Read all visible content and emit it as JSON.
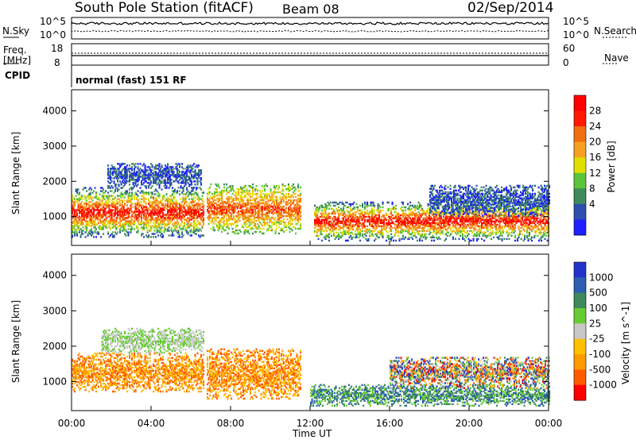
{
  "header": {
    "title": "South Pole Station (fitACF)",
    "beam": "Beam 08",
    "date": "02/Sep/2014"
  },
  "strips": {
    "nsky_label": "N.Sky",
    "nsearch_label": "N.Search",
    "freq_label_1": "Freq.",
    "freq_label_2": "[MHz]",
    "nave_label": "Nave",
    "cpid_label": "CPID",
    "cpid_text": "normal (fast) 151 RF",
    "noise_left_ticks": [
      "10^5",
      "10^0"
    ],
    "noise_right_ticks": [
      "10^5",
      "10^0"
    ],
    "freq_ticks": [
      "18",
      "8"
    ],
    "nave_ticks": [
      "60",
      "0"
    ]
  },
  "colors": {
    "power": [
      "#1f1fff",
      "#2c4fb0",
      "#3e8a5c",
      "#5bc43a",
      "#e0e000",
      "#f7a020",
      "#f07010",
      "#ff1a00",
      "#ff0000"
    ],
    "velocity": [
      "#ff0000",
      "#ff5a00",
      "#ff9a00",
      "#ffc000",
      "#c8c8c8",
      "#66cc33",
      "#3e8a5c",
      "#2c5fb0",
      "#2233cc"
    ]
  },
  "chart_data": [
    {
      "type": "heatmap",
      "title": "",
      "xlabel": "Time UT",
      "ylabel": "Slant Range [km]",
      "xlim": [
        0,
        24
      ],
      "ylim": [
        180,
        4600
      ],
      "x_ticks": [
        "00:00",
        "04:00",
        "08:00",
        "12:00",
        "16:00",
        "20:00",
        "00:00"
      ],
      "y_ticks": [
        1000,
        2000,
        3000,
        4000
      ],
      "colorbar": {
        "label": "Power [dB]",
        "ticks": [
          4,
          8,
          12,
          16,
          20,
          24,
          28
        ]
      },
      "echo_regions": [
        {
          "t_start": 0.0,
          "t_end": 6.6,
          "r_low": 400,
          "r_high": 1800,
          "level": "high"
        },
        {
          "t_start": 1.8,
          "t_end": 6.5,
          "r_low": 1800,
          "r_high": 2500,
          "level": "low"
        },
        {
          "t_start": 6.8,
          "t_end": 11.5,
          "r_low": 500,
          "r_high": 1900,
          "level": "mid"
        },
        {
          "t_start": 12.2,
          "t_end": 24.0,
          "r_low": 300,
          "r_high": 1400,
          "level": "high"
        },
        {
          "t_start": 18.0,
          "t_end": 24.0,
          "r_low": 1000,
          "r_high": 1900,
          "level": "low"
        }
      ]
    },
    {
      "type": "heatmap",
      "title": "",
      "xlabel": "Time UT",
      "ylabel": "Slant Range [km]",
      "xlim": [
        0,
        24
      ],
      "ylim": [
        180,
        4600
      ],
      "x_ticks": [
        "00:00",
        "04:00",
        "08:00",
        "12:00",
        "16:00",
        "20:00",
        "00:00"
      ],
      "y_ticks": [
        1000,
        2000,
        3000,
        4000
      ],
      "colorbar": {
        "label": "Velocity [m s^-1]",
        "ticks": [
          1000,
          500,
          100,
          25,
          -25,
          -100,
          -500,
          -1000
        ]
      },
      "echo_regions": [
        {
          "t_start": 0.0,
          "t_end": 6.6,
          "r_low": 700,
          "r_high": 1800,
          "level": "receding"
        },
        {
          "t_start": 1.5,
          "t_end": 6.6,
          "r_low": 1800,
          "r_high": 2500,
          "level": "low"
        },
        {
          "t_start": 6.8,
          "t_end": 11.5,
          "r_low": 500,
          "r_high": 1900,
          "level": "receding"
        },
        {
          "t_start": 12.0,
          "t_end": 24.0,
          "r_low": 300,
          "r_high": 900,
          "level": "approaching"
        },
        {
          "t_start": 16.0,
          "t_end": 24.0,
          "r_low": 800,
          "r_high": 1700,
          "level": "mixed"
        }
      ]
    }
  ]
}
